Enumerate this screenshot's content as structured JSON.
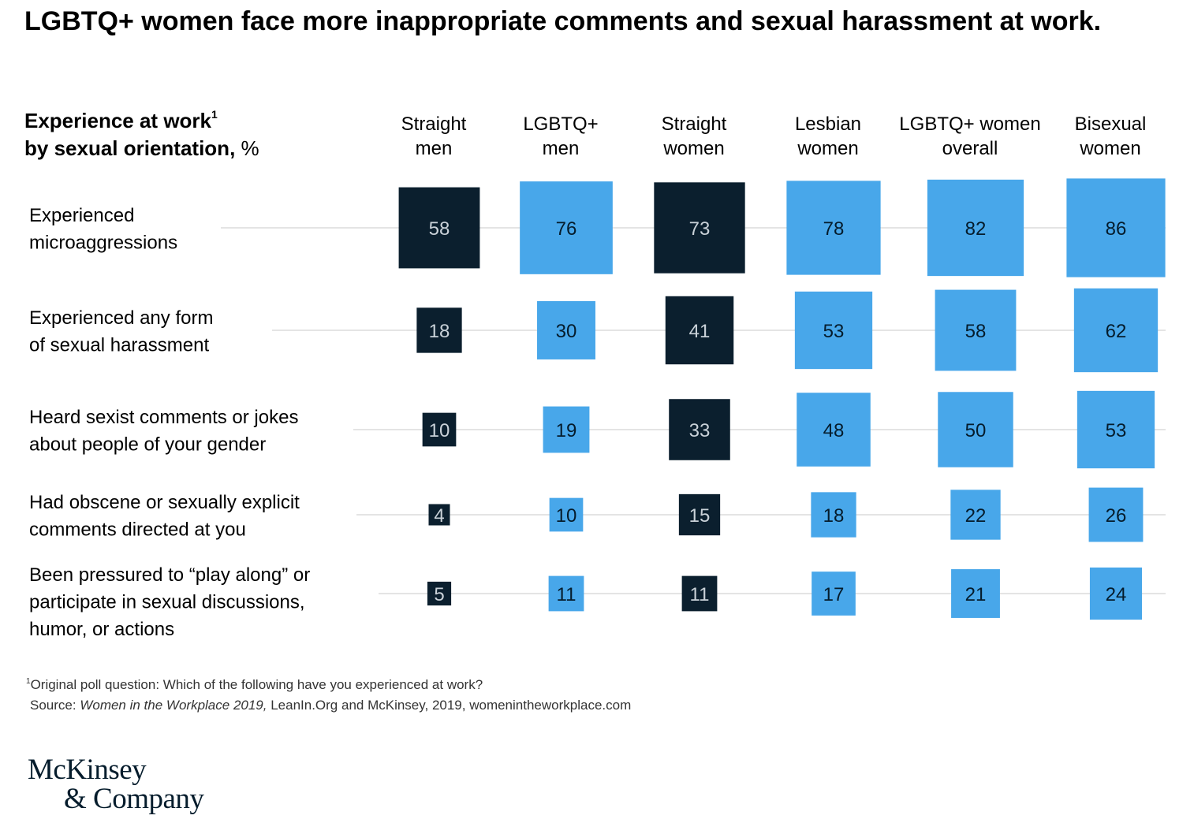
{
  "title": "LGBTQ+ women face more inappropriate comments and sexual harassment at work.",
  "subtitle": {
    "main": "Experience at work",
    "footnote_mark": "1",
    "line2": "by sexual orientation,",
    "unit": "%"
  },
  "colors": {
    "dark": "#0b1f2e",
    "blue": "#48a7ea",
    "dark_text": "#c9d1d8",
    "blue_text": "#051c2c",
    "rule": "#c8c8c8"
  },
  "chart_data": {
    "type": "table",
    "encoding": "square area proportional to percentage",
    "columns": [
      {
        "lines": [
          "Straight",
          "men"
        ],
        "group": "dark"
      },
      {
        "lines": [
          "LGBTQ+",
          "men"
        ],
        "group": "blue"
      },
      {
        "lines": [
          "Straight",
          "women"
        ],
        "group": "dark"
      },
      {
        "lines": [
          "Lesbian",
          "women"
        ],
        "group": "blue"
      },
      {
        "lines": [
          "LGBTQ+ women",
          "overall"
        ],
        "group": "blue"
      },
      {
        "lines": [
          "Bisexual",
          "women"
        ],
        "group": "blue"
      }
    ],
    "rows": [
      {
        "lines": [
          "Experienced",
          "microaggressions"
        ],
        "values": [
          58,
          76,
          73,
          78,
          82,
          86
        ]
      },
      {
        "lines": [
          "Experienced any form",
          "of sexual harassment"
        ],
        "values": [
          18,
          30,
          41,
          53,
          58,
          62
        ]
      },
      {
        "lines": [
          "Heard sexist comments or jokes",
          "about people of your gender"
        ],
        "values": [
          10,
          19,
          33,
          48,
          50,
          53
        ]
      },
      {
        "lines": [
          "Had obscene or sexually explicit",
          "comments directed at you"
        ],
        "values": [
          4,
          10,
          15,
          18,
          22,
          26
        ]
      },
      {
        "lines": [
          "Been pressured to “play along” or",
          "participate in sexual discussions,",
          "humor, or actions"
        ],
        "values": [
          5,
          11,
          11,
          17,
          21,
          24
        ]
      }
    ]
  },
  "footnote": {
    "mark": "1",
    "text": "Original poll question: Which of the following have you experienced at work?"
  },
  "source": {
    "prefix": "Source: ",
    "title": "Women in the Workplace 2019,",
    "rest": " LeanIn.Org and McKinsey, 2019, womenintheworkplace.com"
  },
  "logo": {
    "line1": "McKinsey",
    "line2": "& Company"
  }
}
